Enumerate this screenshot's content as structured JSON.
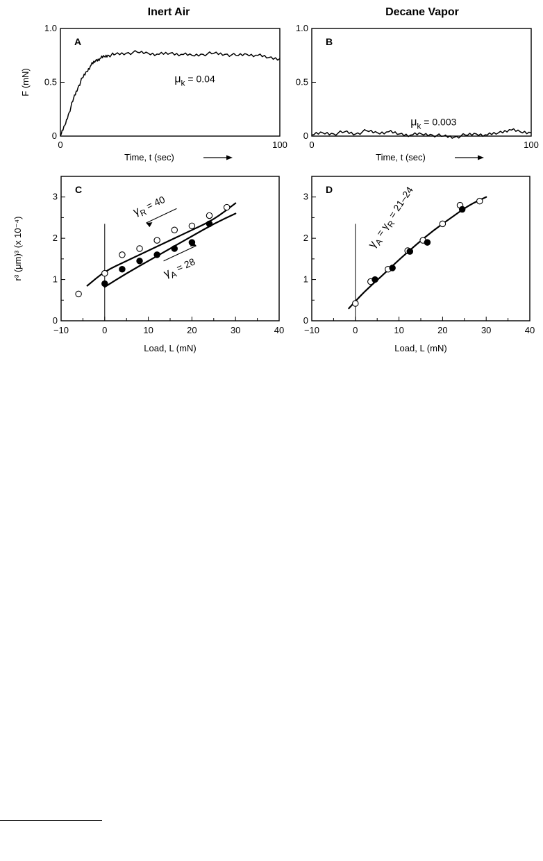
{
  "column_titles": {
    "left": "Inert Air",
    "right": "Decane Vapor"
  },
  "chart_data": [
    {
      "panel": "A",
      "type": "line",
      "xlabel": "Time, t (sec)",
      "ylabel": "F (mN)",
      "xlim": [
        0,
        100
      ],
      "ylim": [
        0,
        1.0
      ],
      "xticks": [
        0,
        100
      ],
      "yticks": [
        0,
        0.5,
        1.0
      ],
      "ytick_labels": [
        "0",
        "0.5",
        "1.0"
      ],
      "annotation": {
        "symbol": "μ",
        "sub": "k",
        "text": " = 0.04"
      },
      "series": [
        {
          "x": [
            0,
            2,
            4,
            6,
            8,
            10,
            12,
            14,
            16,
            18,
            20,
            22,
            25,
            30,
            35,
            40,
            45,
            50,
            55,
            60,
            65,
            70,
            75,
            80,
            85,
            90,
            95,
            100
          ],
          "y": [
            0,
            0.1,
            0.22,
            0.35,
            0.45,
            0.54,
            0.6,
            0.66,
            0.7,
            0.72,
            0.74,
            0.75,
            0.76,
            0.77,
            0.78,
            0.77,
            0.76,
            0.77,
            0.76,
            0.75,
            0.76,
            0.77,
            0.76,
            0.75,
            0.76,
            0.75,
            0.73,
            0.72
          ]
        }
      ]
    },
    {
      "panel": "B",
      "type": "line",
      "xlabel": "Time, t (sec)",
      "ylabel": "",
      "xlim": [
        0,
        100
      ],
      "ylim": [
        0,
        1.0
      ],
      "xticks": [
        0,
        100
      ],
      "yticks": [
        0,
        0.5,
        1.0
      ],
      "ytick_labels": [
        "0",
        "0.5",
        "1.0"
      ],
      "annotation": {
        "symbol": "μ",
        "sub": "k",
        "text": " = 0.003"
      },
      "series": [
        {
          "x": [
            0,
            5,
            10,
            15,
            20,
            25,
            30,
            35,
            40,
            45,
            50,
            55,
            60,
            65,
            70,
            75,
            80,
            85,
            90,
            95,
            100
          ],
          "y": [
            0.01,
            0.03,
            0.02,
            0.04,
            0.02,
            0.05,
            0.03,
            0.04,
            0.02,
            0.01,
            0.02,
            0.01,
            0.0,
            -0.01,
            0.01,
            0.02,
            0.01,
            0.03,
            0.06,
            0.04,
            0.03
          ]
        }
      ]
    },
    {
      "panel": "C",
      "type": "scatter",
      "xlabel": "Load, L (mN)",
      "ylabel": "r³ (μm)³ (x 10⁻⁴)",
      "xlim": [
        -10,
        40
      ],
      "ylim": [
        0,
        3.5
      ],
      "xticks": [
        -10,
        0,
        10,
        20,
        30,
        40
      ],
      "xtick_labels": [
        "−10",
        "0",
        "10",
        "20",
        "30",
        "40"
      ],
      "yticks": [
        0,
        1,
        2,
        3
      ],
      "ytick_labels": [
        "0",
        "1",
        "2",
        "3"
      ],
      "series": [
        {
          "marker": "open",
          "x": [
            -6,
            0,
            4,
            8,
            12,
            16,
            20,
            24,
            28
          ],
          "y": [
            0.65,
            1.15,
            1.6,
            1.75,
            1.95,
            2.2,
            2.3,
            2.55,
            2.75
          ]
        },
        {
          "marker": "filled",
          "x": [
            0,
            4,
            8,
            12,
            16,
            20,
            24
          ],
          "y": [
            0.9,
            1.25,
            1.45,
            1.6,
            1.75,
            1.9,
            2.35
          ]
        }
      ],
      "curves": [
        {
          "x": [
            -4,
            0,
            5,
            10,
            15,
            20,
            25,
            30
          ],
          "y": [
            0.85,
            1.2,
            1.45,
            1.7,
            1.95,
            2.2,
            2.45,
            2.85
          ]
        },
        {
          "x": [
            0,
            5,
            10,
            15,
            20,
            25,
            30
          ],
          "y": [
            0.82,
            1.15,
            1.45,
            1.75,
            2.05,
            2.35,
            2.6
          ]
        }
      ],
      "annotations": [
        {
          "symbol": "γ",
          "sub": "R",
          "text": " = 40"
        },
        {
          "symbol": "γ",
          "sub": "A",
          "text": " = 28"
        }
      ]
    },
    {
      "panel": "D",
      "type": "scatter",
      "xlabel": "Load, L (mN)",
      "ylabel": "",
      "xlim": [
        -10,
        40
      ],
      "ylim": [
        0,
        3.5
      ],
      "xticks": [
        -10,
        0,
        10,
        20,
        30,
        40
      ],
      "xtick_labels": [
        "−10",
        "0",
        "10",
        "20",
        "30",
        "40"
      ],
      "yticks": [
        0,
        1,
        2,
        3
      ],
      "ytick_labels": [
        "0",
        "1",
        "2",
        "3"
      ],
      "series": [
        {
          "marker": "open",
          "x": [
            0,
            3.5,
            7.5,
            12,
            15.5,
            20,
            24,
            28.5
          ],
          "y": [
            0.42,
            0.95,
            1.25,
            1.7,
            1.95,
            2.35,
            2.8,
            2.9
          ]
        },
        {
          "marker": "filled",
          "x": [
            4.5,
            8.5,
            12.5,
            16.5,
            24.5
          ],
          "y": [
            1.0,
            1.28,
            1.68,
            1.9,
            2.7
          ]
        }
      ],
      "curves": [
        {
          "x": [
            -1.5,
            2,
            6,
            10,
            14,
            18,
            22,
            26,
            30
          ],
          "y": [
            0.3,
            0.7,
            1.08,
            1.48,
            1.85,
            2.2,
            2.5,
            2.8,
            3.0
          ]
        }
      ],
      "annotations": [
        {
          "symbol": "γ",
          "sub": "A",
          "text": " = γ",
          "sub2": "R",
          "text2": " = 21–24"
        }
      ]
    }
  ]
}
